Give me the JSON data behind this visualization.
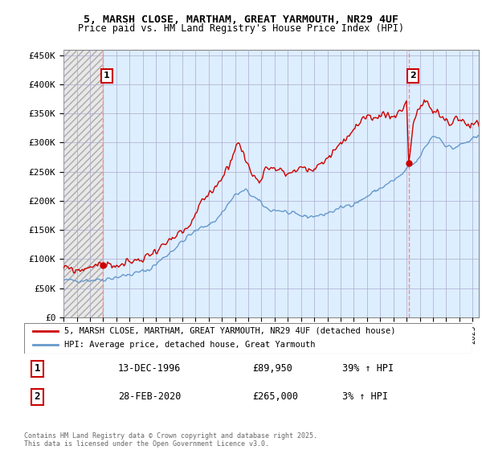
{
  "title_line1": "5, MARSH CLOSE, MARTHAM, GREAT YARMOUTH, NR29 4UF",
  "title_line2": "Price paid vs. HM Land Registry's House Price Index (HPI)",
  "ylabel_ticks": [
    "£0",
    "£50K",
    "£100K",
    "£150K",
    "£200K",
    "£250K",
    "£300K",
    "£350K",
    "£400K",
    "£450K"
  ],
  "ytick_vals": [
    0,
    50000,
    100000,
    150000,
    200000,
    250000,
    300000,
    350000,
    400000,
    450000
  ],
  "ylim": [
    0,
    460000
  ],
  "xlim_start": 1994.0,
  "xlim_end": 2025.5,
  "marker1_date": 1996.96,
  "marker1_price": 89950,
  "marker1_label": "1",
  "marker2_date": 2020.17,
  "marker2_price": 265000,
  "marker2_label": "2",
  "vline1_x": 1996.96,
  "vline2_x": 2020.17,
  "legend_entries": [
    "5, MARSH CLOSE, MARTHAM, GREAT YARMOUTH, NR29 4UF (detached house)",
    "HPI: Average price, detached house, Great Yarmouth"
  ],
  "sale1_label": "1",
  "sale1_date": "13-DEC-1996",
  "sale1_price": "£89,950",
  "sale1_hpi": "39% ↑ HPI",
  "sale2_label": "2",
  "sale2_date": "28-FEB-2020",
  "sale2_price": "£265,000",
  "sale2_hpi": "3% ↑ HPI",
  "footer": "Contains HM Land Registry data © Crown copyright and database right 2025.\nThis data is licensed under the Open Government Licence v3.0.",
  "red_color": "#cc0000",
  "blue_color": "#6699cc",
  "bg_left_hatch_color": "#dddddd",
  "bg_right_color": "#ddeeff",
  "grid_color": "#aaaacc"
}
